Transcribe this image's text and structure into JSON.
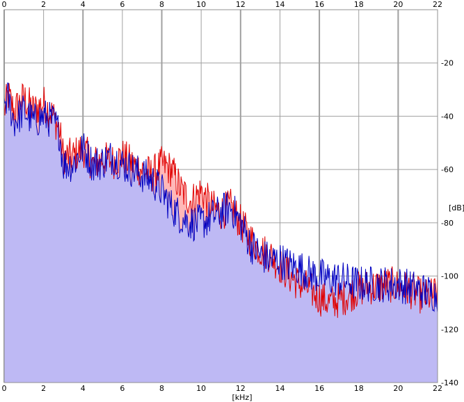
{
  "chart_data": {
    "type": "area",
    "title": "",
    "xlabel": "[kHz]",
    "ylabel": "[dB]",
    "xlim": [
      0,
      22
    ],
    "ylim": [
      -140,
      0
    ],
    "x_ticks": [
      0,
      2,
      4,
      6,
      8,
      10,
      12,
      14,
      16,
      18,
      20,
      22
    ],
    "y_ticks": [
      -20,
      -40,
      -60,
      -80,
      -100,
      -120,
      -140
    ],
    "x_tick_labels": [
      "0",
      "2",
      "4",
      "6",
      "8",
      "10",
      "12",
      "14",
      "16",
      "18",
      "20",
      "22"
    ],
    "y_tick_labels": [
      "-20",
      "-40",
      "-60",
      "-80",
      "-100",
      "-120",
      "-140"
    ],
    "grid": true,
    "legend": "none",
    "colors": {
      "background": "#ffffff",
      "grid": "#a0a0a0",
      "series_red_line": "#e00000",
      "series_red_fill": "#ffb8b8",
      "series_blue_line": "#0000c0",
      "series_blue_fill": "#b8b8f8"
    },
    "series": [
      {
        "color": "#e00000",
        "x": [
          0,
          0.2,
          0.5,
          1,
          1.5,
          2,
          2.5,
          2.8,
          3,
          3.5,
          4,
          4.5,
          5,
          5.5,
          6,
          6.5,
          7,
          7.5,
          8,
          8.5,
          9,
          9.5,
          10,
          10.5,
          11,
          11.5,
          12,
          12.5,
          13,
          13.5,
          14,
          14.5,
          15,
          15.5,
          16,
          16.5,
          17,
          17.5,
          18,
          18.5,
          19,
          19.5,
          20,
          20.5,
          21,
          21.5,
          22
        ],
        "values": [
          -38,
          -32,
          -38,
          -33,
          -38,
          -35,
          -40,
          -45,
          -55,
          -55,
          -52,
          -58,
          -56,
          -57,
          -55,
          -58,
          -60,
          -62,
          -58,
          -60,
          -68,
          -72,
          -68,
          -74,
          -76,
          -74,
          -80,
          -86,
          -90,
          -92,
          -96,
          -100,
          -103,
          -105,
          -108,
          -110,
          -109,
          -107,
          -105,
          -104,
          -104,
          -103,
          -104,
          -105,
          -107,
          -108,
          -106
        ]
      },
      {
        "color": "#0000c0",
        "x": [
          0,
          0.2,
          0.5,
          1,
          1.5,
          2,
          2.5,
          2.8,
          3,
          3.5,
          4,
          4.5,
          5,
          5.5,
          6,
          6.5,
          7,
          7.5,
          8,
          8.5,
          9,
          9.5,
          10,
          10.5,
          11,
          11.5,
          12,
          12.5,
          13,
          13.5,
          14,
          14.5,
          15,
          15.5,
          16,
          16.5,
          17,
          17.5,
          18,
          18.5,
          19,
          19.5,
          20,
          20.5,
          21,
          21.5,
          22
        ],
        "values": [
          -35,
          -33,
          -42,
          -38,
          -42,
          -40,
          -42,
          -46,
          -58,
          -58,
          -52,
          -58,
          -57,
          -55,
          -58,
          -60,
          -62,
          -64,
          -68,
          -74,
          -78,
          -80,
          -80,
          -78,
          -76,
          -74,
          -80,
          -88,
          -92,
          -94,
          -94,
          -96,
          -97,
          -99,
          -100,
          -101,
          -101,
          -102,
          -103,
          -103,
          -103,
          -103,
          -103,
          -104,
          -105,
          -106,
          -107
        ]
      }
    ]
  }
}
